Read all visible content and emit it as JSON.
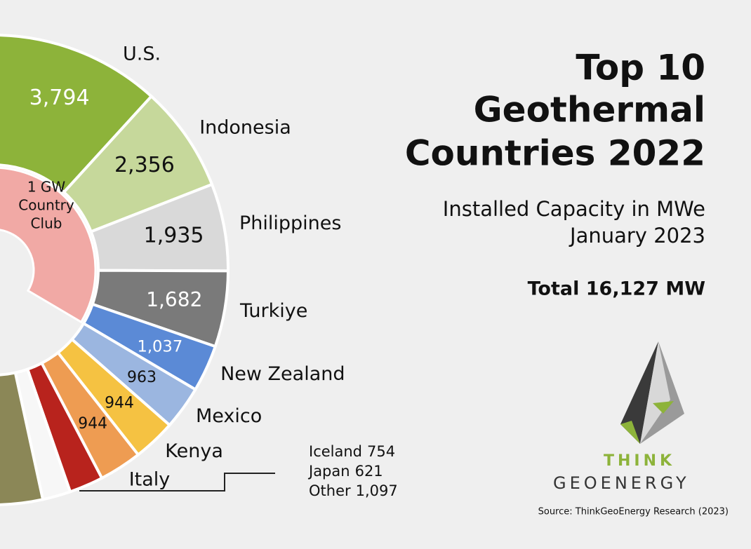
{
  "chart_data": {
    "type": "donut",
    "title": [
      "Top 10",
      "Geothermal",
      "Countries 2022"
    ],
    "subtitle": [
      "Installed Capacity in MWe",
      "January 2023"
    ],
    "total": "Total 16,127 MW",
    "group_label": [
      "1 GW",
      "Country",
      "Club"
    ],
    "categories": [
      "U.S.",
      "Indonesia",
      "Philippines",
      "Turkiye",
      "New Zealand",
      "Mexico",
      "Kenya",
      "Italy",
      "Iceland",
      "Japan",
      "Other"
    ],
    "values": [
      3794,
      2356,
      1935,
      1682,
      1037,
      963,
      944,
      944,
      754,
      621,
      1097
    ],
    "value_labels": [
      "3,794",
      "2,356",
      "1,935",
      "1,682",
      "1,037",
      "963",
      "944",
      "944",
      "754",
      "621",
      "1,097"
    ],
    "colors": [
      "#8db33a",
      "#c6d89b",
      "#d9d9d9",
      "#7a7a7a",
      "#5b8ad6",
      "#9bb6e0",
      "#f5c242",
      "#ee9c52",
      "#b8231d",
      "#f7f7f7",
      "#8b8757"
    ],
    "logo": [
      "THINK",
      "GEOENERGY"
    ],
    "source": "Source: ThinkGeoEnergy Research (2023)"
  }
}
